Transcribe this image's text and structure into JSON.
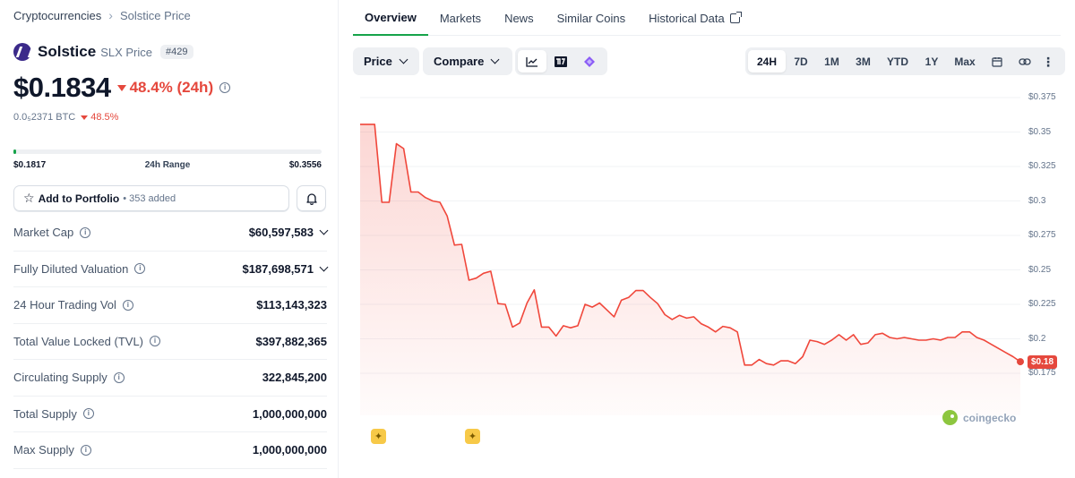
{
  "breadcrumb": {
    "root": "Cryptocurrencies",
    "current": "Solstice Price"
  },
  "coin": {
    "name": "Solstice",
    "symbol_label": "SLX Price",
    "rank": "#429",
    "price": "$0.1834",
    "change_24h": "48.4% (24h)",
    "btc_price": "0.0₅2371 BTC",
    "btc_change": "48.5%"
  },
  "range": {
    "low": "$0.1817",
    "label": "24h Range",
    "high": "$0.3556",
    "position_fraction": 0.01
  },
  "portfolio": {
    "label": "Add to Portfolio",
    "added": "• 353 added"
  },
  "stats": [
    {
      "key": "Market Cap",
      "value": "$60,597,583",
      "expandable": true
    },
    {
      "key": "Fully Diluted Valuation",
      "value": "$187,698,571",
      "expandable": true
    },
    {
      "key": "24 Hour Trading Vol",
      "value": "$113,143,323",
      "expandable": false
    },
    {
      "key": "Total Value Locked (TVL)",
      "value": "$397,882,365",
      "expandable": false
    },
    {
      "key": "Circulating Supply",
      "value": "322,845,200",
      "expandable": false
    },
    {
      "key": "Total Supply",
      "value": "1,000,000,000",
      "expandable": false
    },
    {
      "key": "Max Supply",
      "value": "1,000,000,000",
      "expandable": false
    }
  ],
  "tabs": [
    "Overview",
    "Markets",
    "News",
    "Similar Coins",
    "Historical Data"
  ],
  "toolbar": {
    "price_label": "Price",
    "compare_label": "Compare",
    "ranges": [
      "24H",
      "7D",
      "1M",
      "3M",
      "YTD",
      "1Y",
      "Max"
    ],
    "active_range": "24H"
  },
  "colors": {
    "accent": "#16a34a",
    "down": "#e5483d",
    "line": "#f0473b"
  },
  "chart_data": {
    "type": "line",
    "y_ticks": [
      "$0.375",
      "$0.35",
      "$0.325",
      "$0.3",
      "$0.275",
      "$0.25",
      "$0.225",
      "$0.2",
      "$0.175"
    ],
    "ylim": [
      0.17,
      0.38
    ],
    "last_price_label": "$0.18",
    "watermark": "coingecko",
    "series": [
      {
        "values": [
          0.3556,
          0.3556,
          0.3556,
          0.299,
          0.299,
          0.3415,
          0.338,
          0.3065,
          0.3065,
          0.3025,
          0.3,
          0.299,
          0.289,
          0.268,
          0.2685,
          0.2425,
          0.244,
          0.2475,
          0.249,
          0.2255,
          0.225,
          0.2085,
          0.2115,
          0.226,
          0.2355,
          0.2085,
          0.2085,
          0.202,
          0.2095,
          0.208,
          0.2095,
          0.225,
          0.223,
          0.226,
          0.221,
          0.216,
          0.228,
          0.23,
          0.235,
          0.235,
          0.23,
          0.2255,
          0.2175,
          0.214,
          0.217,
          0.215,
          0.216,
          0.211,
          0.2085,
          0.205,
          0.209,
          0.208,
          0.205,
          0.181,
          0.181,
          0.185,
          0.182,
          0.181,
          0.184,
          0.184,
          0.182,
          0.187,
          0.199,
          0.198,
          0.196,
          0.199,
          0.203,
          0.199,
          0.203,
          0.196,
          0.197,
          0.203,
          0.204,
          0.201,
          0.2,
          0.201,
          0.2,
          0.199,
          0.199,
          0.2,
          0.199,
          0.201,
          0.201,
          0.205,
          0.205,
          0.201,
          0.199,
          0.196,
          0.193,
          0.19,
          0.187,
          0.1834
        ]
      }
    ]
  }
}
